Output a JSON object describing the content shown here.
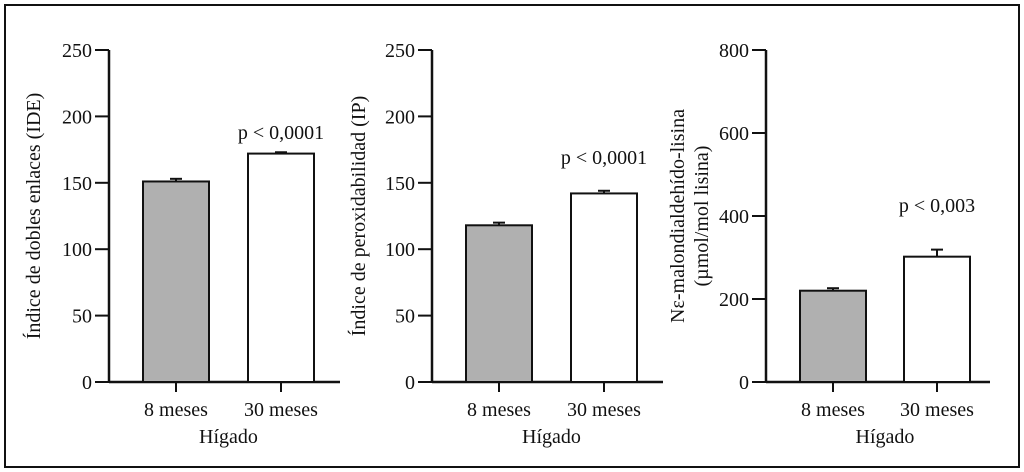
{
  "colors": {
    "bar_8_meses": "#b0b0b0",
    "bar_30_meses": "#ffffff",
    "stroke": "#111111"
  },
  "chart_data": [
    {
      "type": "bar",
      "title": "",
      "ylabel": "Índice de dobles enlaces (IDE)",
      "xlabel": "Hígado",
      "categories": [
        "8 meses",
        "30 meses"
      ],
      "values": [
        151,
        172
      ],
      "error_upper": [
        153,
        173
      ],
      "ylim": [
        0,
        250
      ],
      "yticks": [
        0,
        50,
        100,
        150,
        200,
        250
      ],
      "annotation": "p < 0,0001",
      "grid": false
    },
    {
      "type": "bar",
      "title": "",
      "ylabel": "Índice de peroxidabilidad (IP)",
      "xlabel": "Hígado",
      "categories": [
        "8 meses",
        "30 meses"
      ],
      "values": [
        118,
        142
      ],
      "error_upper": [
        120,
        144
      ],
      "ylim": [
        0,
        250
      ],
      "yticks": [
        0,
        50,
        100,
        150,
        200,
        250
      ],
      "annotation": "p < 0,0001",
      "grid": false
    },
    {
      "type": "bar",
      "title": "",
      "ylabel": "Nε-malondialdehído-lisina",
      "ylabel2": "(µmol/mol lisina)",
      "xlabel": "Hígado",
      "categories": [
        "8 meses",
        "30 meses"
      ],
      "values": [
        220,
        302
      ],
      "error_upper": [
        226,
        319
      ],
      "ylim": [
        0,
        800
      ],
      "yticks": [
        0,
        200,
        400,
        600,
        800
      ],
      "annotation": "p < 0,003",
      "grid": false
    }
  ]
}
